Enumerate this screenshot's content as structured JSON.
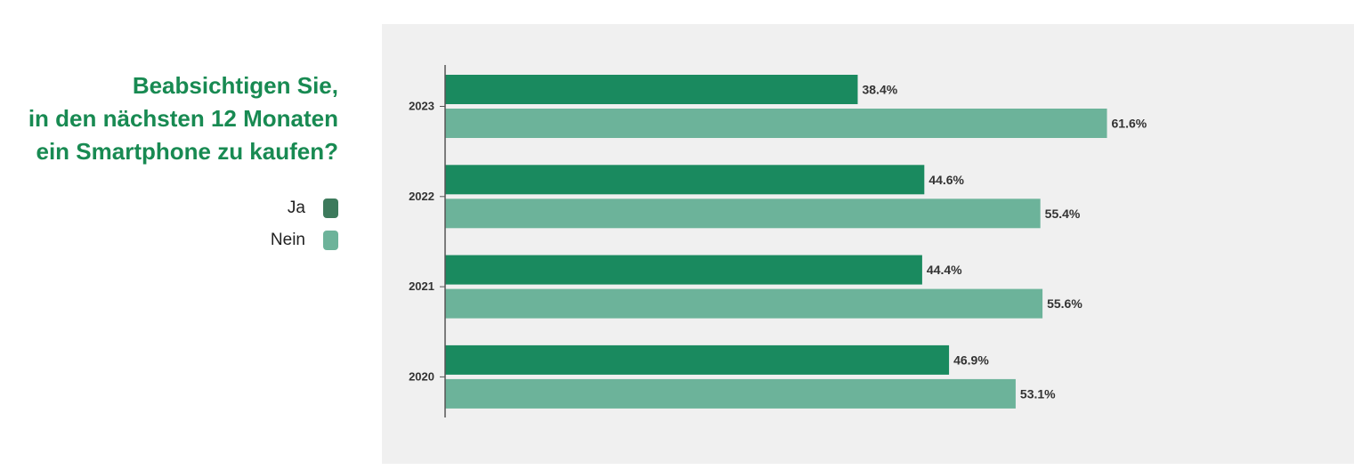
{
  "title_lines": [
    "Beabsichtigen Sie,",
    "in den nächsten 12 Monaten",
    "ein Smartphone zu kaufen?"
  ],
  "legend": [
    {
      "label": "Ja",
      "color": "#3d7a5c"
    },
    {
      "label": "Nein",
      "color": "#6db39a"
    }
  ],
  "colors": {
    "title": "#188a52",
    "ja_bar": "#1a8a5f",
    "nein_bar": "#6cb39a",
    "panel_background": "#f0f0f0"
  },
  "chart_data": {
    "type": "bar",
    "orientation": "horizontal",
    "title": "Beabsichtigen Sie, in den nächsten 12 Monaten ein Smartphone zu kaufen?",
    "categories": [
      "2023",
      "2022",
      "2021",
      "2020"
    ],
    "series": [
      {
        "name": "Ja",
        "values": [
          38.4,
          44.6,
          44.4,
          46.9
        ],
        "labels": [
          "38.4%",
          "44.6%",
          "44.4%",
          "46.9%"
        ]
      },
      {
        "name": "Nein",
        "values": [
          61.6,
          55.4,
          55.6,
          53.1
        ],
        "labels": [
          "61.6%",
          "55.4%",
          "55.6%",
          "53.1%"
        ]
      }
    ],
    "xlim": [
      0,
      100
    ],
    "grid": false,
    "legend_position": "left"
  }
}
